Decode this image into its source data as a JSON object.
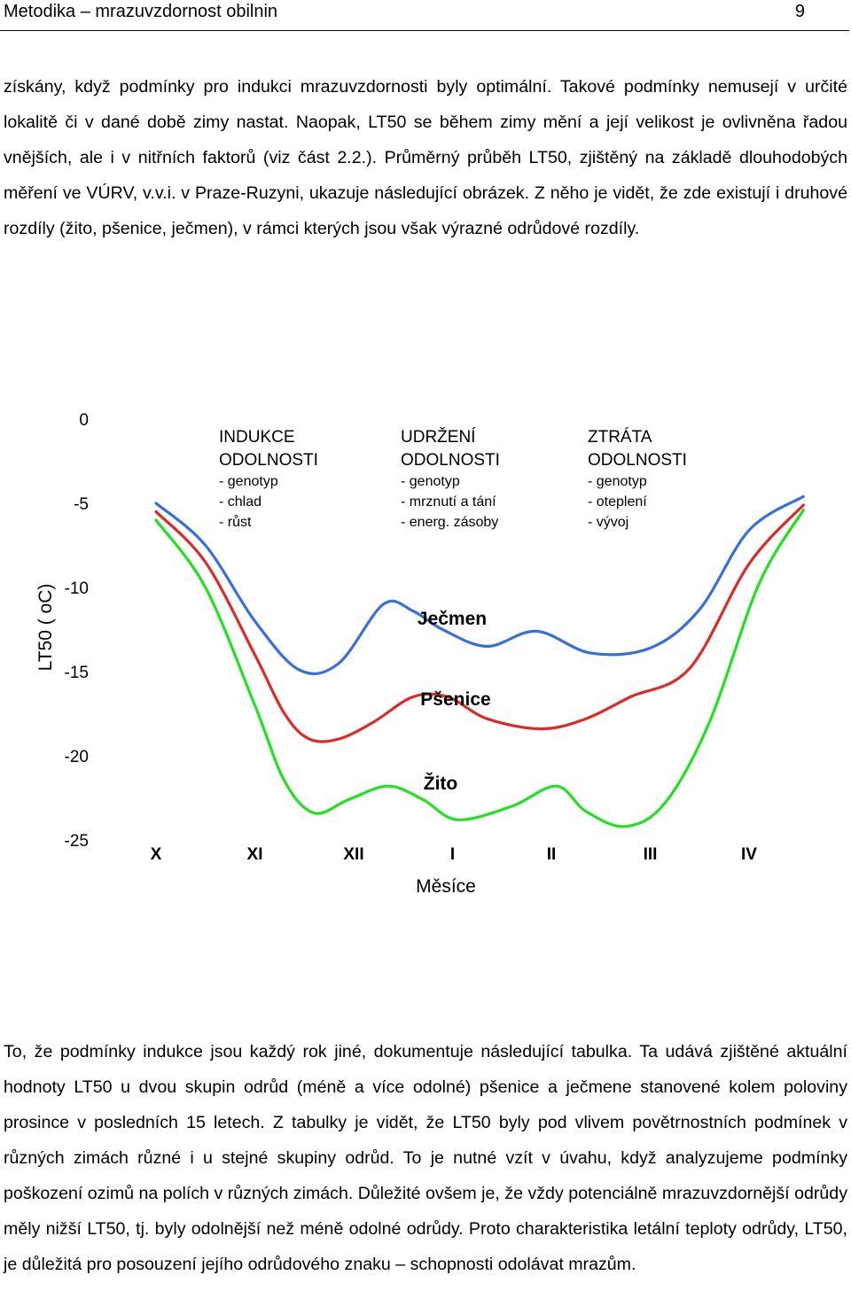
{
  "header": {
    "title": "Metodika – mrazuvzdornost obilnin",
    "page_number": "9"
  },
  "paragraph1": "získány, když podmínky pro indukci mrazuvzdornosti byly optimální. Takové podmínky nemusejí v určité lokalitě či v dané době zimy nastat. Naopak, LT50 se během zimy mění a její velikost je ovlivněna řadou vnějších, ale i v nitřních faktorů (viz část 2.2.). Průměrný průběh LT50, zjištěný na základě dlouhodobých měření ve VÚRV, v.v.i. v Praze-Ruzyni, ukazuje následující obrázek. Z něho je vidět, že zde existují i druhové rozdíly (žito, pšenice, ječmen), v rámci kterých jsou však výrazné odrůdové rozdíly.",
  "paragraph2": "To, že podmínky indukce jsou každý rok jiné, dokumentuje následující tabulka. Ta udává zjištěné aktuální hodnoty LT50 u dvou skupin odrůd (méně a více odolné) pšenice a ječmene stanovené kolem poloviny prosince v posledních 15 letech. Z tabulky je vidět, že LT50 byly pod vlivem povětrnostních podmínek v různých zimách různé i u stejné skupiny odrůd. To je nutné vzít v úvahu, když analyzujeme podmínky poškození ozimů na polích v různých zimách. Důležité ovšem je, že vždy potenciálně mrazuvzdornější odrůdy měly nižší LT50, tj. byly odolnější než méně odolné odrůdy. Proto charakteristika letální teploty odrůdy, LT50, je důležitá pro posouzení jejího odrůdového znaku – schopnosti odolávat mrazům.",
  "chart_data": {
    "type": "line",
    "ylabel": "LT50 ( oC)",
    "xlabel": "Měsíce",
    "y_ticks": [
      "0",
      "-5",
      "-10",
      "-15",
      "-20",
      "-25"
    ],
    "ylim": [
      -25,
      0
    ],
    "x_labels": [
      "X",
      "XI",
      "XII",
      "I",
      "II",
      "III",
      "IV"
    ],
    "phases": [
      {
        "title1": "INDUKCE",
        "title2": "ODOLNOSTI",
        "items": [
          "- genotyp",
          "- chlad",
          "- růst"
        ]
      },
      {
        "title1": "UDRŽENÍ",
        "title2": "ODOLNOSTI",
        "items": [
          "- genotyp",
          "- mrznutí a tání",
          "- energ. zásoby"
        ]
      },
      {
        "title1": "ZTRÁTA",
        "title2": "ODOLNOSTI",
        "items": [
          "- genotyp",
          "- oteplení",
          "- vývoj"
        ]
      }
    ],
    "series": [
      {
        "name": "Ječmen",
        "color": "#3a6fd8",
        "points": [
          [
            0,
            -5.0
          ],
          [
            0.5,
            -7.5
          ],
          [
            1.0,
            -12.0
          ],
          [
            1.45,
            -14.9
          ],
          [
            1.85,
            -14.5
          ],
          [
            2.3,
            -11.0
          ],
          [
            2.6,
            -11.4
          ],
          [
            2.9,
            -12.5
          ],
          [
            3.35,
            -13.5
          ],
          [
            3.85,
            -12.6
          ],
          [
            4.4,
            -13.9
          ],
          [
            5.0,
            -13.6
          ],
          [
            5.5,
            -11.3
          ],
          [
            6.0,
            -6.6
          ],
          [
            6.55,
            -4.6
          ]
        ]
      },
      {
        "name": "Pšenice",
        "color": "#dc2a2a",
        "points": [
          [
            0,
            -5.5
          ],
          [
            0.5,
            -8.5
          ],
          [
            1.0,
            -14.0
          ],
          [
            1.3,
            -17.5
          ],
          [
            1.55,
            -19.0
          ],
          [
            1.85,
            -19.0
          ],
          [
            2.2,
            -18.0
          ],
          [
            2.6,
            -16.5
          ],
          [
            2.95,
            -16.5
          ],
          [
            3.35,
            -17.8
          ],
          [
            3.9,
            -18.4
          ],
          [
            4.35,
            -17.8
          ],
          [
            4.8,
            -16.5
          ],
          [
            5.4,
            -14.8
          ],
          [
            6.0,
            -8.6
          ],
          [
            6.55,
            -5.1
          ]
        ]
      },
      {
        "name": "Žito",
        "color": "#22e022",
        "points": [
          [
            0,
            -6.0
          ],
          [
            0.5,
            -10.0
          ],
          [
            1.0,
            -17.0
          ],
          [
            1.3,
            -21.5
          ],
          [
            1.6,
            -23.4
          ],
          [
            1.95,
            -22.6
          ],
          [
            2.35,
            -21.8
          ],
          [
            2.7,
            -22.6
          ],
          [
            3.05,
            -23.8
          ],
          [
            3.6,
            -23.0
          ],
          [
            4.05,
            -21.8
          ],
          [
            4.35,
            -23.3
          ],
          [
            4.75,
            -24.2
          ],
          [
            5.15,
            -22.8
          ],
          [
            5.6,
            -18.0
          ],
          [
            6.1,
            -9.8
          ],
          [
            6.55,
            -5.4
          ]
        ]
      }
    ]
  }
}
